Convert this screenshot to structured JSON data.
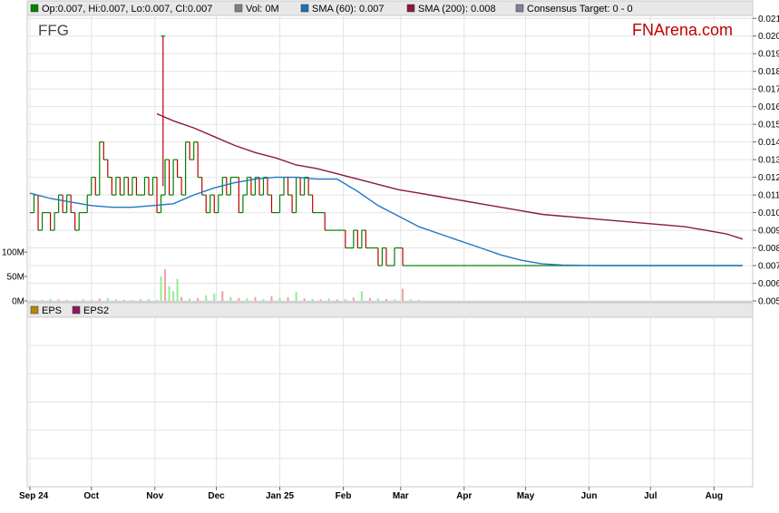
{
  "chart_data": {
    "type": "line",
    "ticker": "FFG",
    "brand": "FNArena.com",
    "legend": [
      {
        "label": "Op:0.007, Hi:0.007, Lo:0.007, Cl:0.007",
        "color": "#008000"
      },
      {
        "label": "Vol: 0M",
        "color": "#808080"
      },
      {
        "label": "SMA (60): 0.007",
        "color": "#1f6fb4"
      },
      {
        "label": "SMA (200): 0.008",
        "color": "#8b1a3a"
      },
      {
        "label": "Consensus Target: 0 - 0",
        "color": "#8080a0"
      }
    ],
    "lower_legend": [
      {
        "label": "EPS",
        "color": "#b8860b"
      },
      {
        "label": "EPS2",
        "color": "#8b1a5a"
      }
    ],
    "price_axis": {
      "min": 0.005,
      "max": 0.0205,
      "ticks": [
        "0.021",
        "0.020",
        "0.019",
        "0.018",
        "0.017",
        "0.016",
        "0.015",
        "0.014",
        "0.013",
        "0.012",
        "0.011",
        "0.010",
        "0.009",
        "0.008",
        "0.007",
        "0.006",
        "0.005"
      ]
    },
    "volume_axis": {
      "ticks": [
        "100M",
        "50M",
        "0M"
      ],
      "max": 130
    },
    "x_labels": [
      "Sep 24",
      "Oct",
      "Nov",
      "Dec",
      "Jan 25",
      "Feb",
      "Mar",
      "Apr",
      "May",
      "Jun",
      "Jul",
      "Aug"
    ],
    "x_label_days": [
      0,
      30,
      61,
      91,
      122,
      153,
      181,
      212,
      242,
      273,
      303,
      334
    ],
    "price_series": {
      "name": "Close",
      "days": [
        0,
        2,
        4,
        6,
        8,
        10,
        12,
        14,
        16,
        18,
        20,
        22,
        24,
        26,
        28,
        30,
        32,
        34,
        36,
        38,
        40,
        42,
        44,
        46,
        48,
        50,
        52,
        54,
        56,
        58,
        60,
        62,
        64,
        66,
        68,
        70,
        72,
        74,
        76,
        78,
        80,
        82,
        84,
        86,
        88,
        90,
        92,
        94,
        96,
        98,
        100,
        102,
        104,
        106,
        108,
        110,
        112,
        114,
        116,
        118,
        120,
        122,
        124,
        126,
        128,
        130,
        132,
        134,
        136,
        138,
        140,
        142,
        144,
        146,
        148,
        150,
        152,
        154,
        156,
        158,
        160,
        162,
        164,
        166,
        168,
        170,
        172,
        174,
        176,
        178,
        180,
        182,
        184,
        186,
        188,
        190,
        195,
        200,
        210,
        220,
        230,
        240,
        250,
        260,
        270,
        280,
        290,
        300,
        310,
        320,
        330,
        340,
        348
      ],
      "values": [
        0.01,
        0.011,
        0.009,
        0.01,
        0.01,
        0.009,
        0.01,
        0.011,
        0.01,
        0.011,
        0.01,
        0.009,
        0.01,
        0.01,
        0.011,
        0.012,
        0.011,
        0.014,
        0.013,
        0.012,
        0.011,
        0.012,
        0.011,
        0.012,
        0.011,
        0.012,
        0.011,
        0.011,
        0.012,
        0.011,
        0.012,
        0.01,
        0.011,
        0.013,
        0.011,
        0.013,
        0.012,
        0.011,
        0.014,
        0.013,
        0.014,
        0.012,
        0.011,
        0.01,
        0.011,
        0.01,
        0.011,
        0.012,
        0.011,
        0.012,
        0.012,
        0.01,
        0.011,
        0.012,
        0.011,
        0.012,
        0.011,
        0.012,
        0.011,
        0.01,
        0.01,
        0.011,
        0.012,
        0.011,
        0.01,
        0.012,
        0.011,
        0.012,
        0.011,
        0.01,
        0.01,
        0.01,
        0.009,
        0.009,
        0.009,
        0.009,
        0.009,
        0.008,
        0.008,
        0.009,
        0.008,
        0.009,
        0.008,
        0.008,
        0.008,
        0.007,
        0.008,
        0.007,
        0.007,
        0.008,
        0.008,
        0.007,
        0.007,
        0.007,
        0.007,
        0.007,
        0.007,
        0.007,
        0.007,
        0.007,
        0.007,
        0.007,
        0.007,
        0.007,
        0.007,
        0.007,
        0.007,
        0.007,
        0.007,
        0.007,
        0.007,
        0.007,
        0.007
      ]
    },
    "sma60": {
      "name": "SMA (60)",
      "days": [
        0,
        10,
        20,
        30,
        40,
        50,
        60,
        70,
        80,
        90,
        100,
        110,
        120,
        130,
        140,
        150,
        160,
        170,
        180,
        190,
        200,
        210,
        220,
        230,
        240,
        250,
        260,
        270,
        280,
        348
      ],
      "values": [
        0.0111,
        0.0108,
        0.0106,
        0.0104,
        0.0103,
        0.0103,
        0.0104,
        0.0105,
        0.011,
        0.0114,
        0.0117,
        0.0119,
        0.012,
        0.012,
        0.0119,
        0.0119,
        0.0112,
        0.0104,
        0.0098,
        0.0092,
        0.0088,
        0.0084,
        0.008,
        0.0076,
        0.0073,
        0.0071,
        0.00703,
        0.00701,
        0.007,
        0.007
      ]
    },
    "sma200": {
      "name": "SMA (200)",
      "days": [
        62,
        70,
        80,
        90,
        100,
        110,
        120,
        130,
        140,
        150,
        160,
        170,
        180,
        190,
        200,
        210,
        220,
        230,
        240,
        250,
        260,
        270,
        280,
        290,
        300,
        310,
        320,
        330,
        340,
        348
      ],
      "values": [
        0.0156,
        0.0152,
        0.0148,
        0.0143,
        0.0138,
        0.0134,
        0.0131,
        0.0127,
        0.0125,
        0.0122,
        0.0119,
        0.0116,
        0.0113,
        0.0111,
        0.0109,
        0.0107,
        0.0105,
        0.0103,
        0.0101,
        0.0099,
        0.0098,
        0.0097,
        0.0096,
        0.0095,
        0.0094,
        0.0093,
        0.0092,
        0.009,
        0.0088,
        0.0085
      ]
    },
    "volume": {
      "days": [
        2,
        6,
        10,
        14,
        18,
        22,
        26,
        30,
        34,
        38,
        42,
        46,
        50,
        54,
        58,
        62,
        64,
        66,
        68,
        70,
        72,
        74,
        78,
        82,
        86,
        90,
        94,
        98,
        102,
        106,
        110,
        114,
        118,
        122,
        126,
        130,
        134,
        138,
        142,
        146,
        150,
        154,
        158,
        162,
        166,
        170,
        174,
        178,
        182,
        186,
        190
      ],
      "values": [
        2,
        2,
        4,
        3,
        2,
        1,
        3,
        2,
        5,
        6,
        3,
        2,
        2,
        3,
        4,
        2,
        50,
        65,
        30,
        20,
        45,
        8,
        5,
        6,
        12,
        15,
        20,
        8,
        6,
        5,
        8,
        3,
        10,
        6,
        8,
        18,
        5,
        4,
        3,
        5,
        3,
        4,
        7,
        20,
        6,
        5,
        4,
        3,
        25,
        3,
        2
      ],
      "up": [
        true,
        false,
        true,
        false,
        true,
        false,
        true,
        true,
        false,
        true,
        true,
        false,
        true,
        false,
        true,
        true,
        true,
        false,
        true,
        true,
        true,
        false,
        true,
        false,
        true,
        true,
        false,
        true,
        false,
        true,
        false,
        true,
        false,
        true,
        false,
        true,
        false,
        true,
        false,
        true,
        false,
        true,
        false,
        true,
        false,
        true,
        false,
        true,
        false,
        true,
        false
      ]
    }
  }
}
